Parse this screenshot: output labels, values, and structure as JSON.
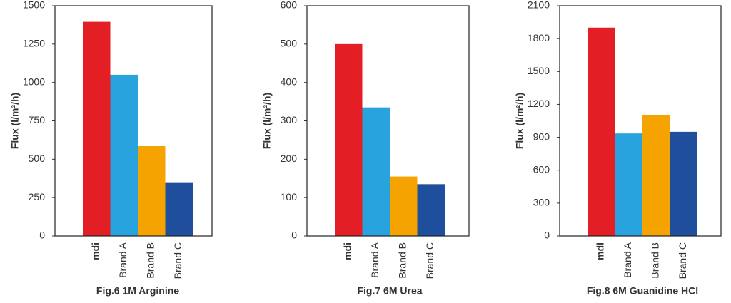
{
  "chart_data": [
    {
      "type": "bar",
      "title": "Fig.6 1M Arginine",
      "y_label": "Flux (l/m²/h)",
      "categories": [
        "mdi",
        "Brand A",
        "Brand B",
        "Brand C"
      ],
      "values": [
        1395,
        1050,
        585,
        350
      ],
      "colors": [
        "#e31e24",
        "#29a3dd",
        "#f5a300",
        "#1f4e9c"
      ],
      "label_colors": [
        "#e31e24",
        "#333333",
        "#333333",
        "#333333"
      ],
      "ylim": [
        0,
        1500
      ],
      "yticks": [
        0,
        250,
        500,
        750,
        1000,
        1250,
        1500
      ]
    },
    {
      "type": "bar",
      "title": "Fig.7 6M Urea",
      "y_label": "Flux (l/m²/h)",
      "categories": [
        "mdi",
        "Brand A",
        "Brand B",
        "Brand C"
      ],
      "values": [
        500,
        335,
        155,
        135
      ],
      "colors": [
        "#e31e24",
        "#29a3dd",
        "#f5a300",
        "#1f4e9c"
      ],
      "label_colors": [
        "#e31e24",
        "#333333",
        "#333333",
        "#333333"
      ],
      "ylim": [
        0,
        600
      ],
      "yticks": [
        0,
        100,
        200,
        300,
        400,
        500,
        600
      ]
    },
    {
      "type": "bar",
      "title": "Fig.8 6M Guanidine HCl",
      "y_label": "Flux (l/m²/h)",
      "categories": [
        "mdi",
        "Brand A",
        "Brand B",
        "Brand C"
      ],
      "values": [
        1900,
        935,
        1100,
        950
      ],
      "colors": [
        "#e31e24",
        "#29a3dd",
        "#f5a300",
        "#1f4e9c"
      ],
      "label_colors": [
        "#e31e24",
        "#333333",
        "#333333",
        "#333333"
      ],
      "ylim": [
        0,
        2100
      ],
      "yticks": [
        0,
        300,
        600,
        900,
        1200,
        1500,
        1800,
        2100
      ]
    }
  ]
}
